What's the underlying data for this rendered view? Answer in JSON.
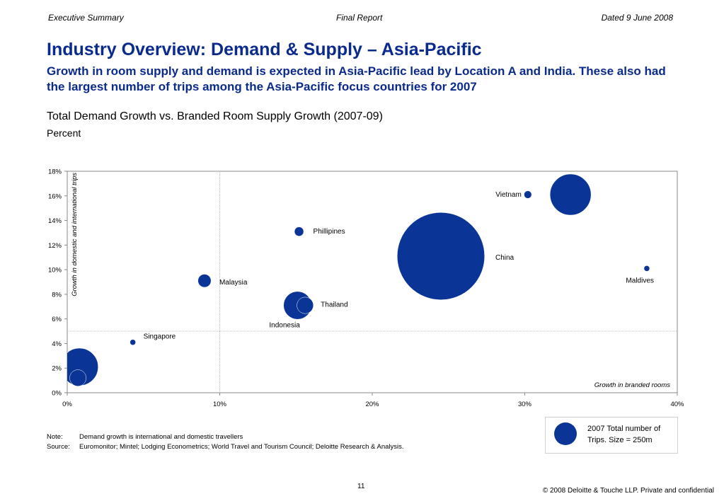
{
  "header": {
    "left": "Executive Summary",
    "center": "Final Report",
    "right": "Dated 9 June 2008"
  },
  "title": "Industry Overview: Demand & Supply – Asia-Pacific",
  "subtitle": "Growth in room supply and demand is expected in Asia-Pacific lead by Location A and India. These also had the largest number of trips among the Asia-Pacific focus countries for 2007",
  "chart_title": "Total Demand Growth vs. Branded Room Supply Growth (2007-09)",
  "chart_unit": "Percent",
  "notes": {
    "note_label": "Note:",
    "note_text": "Demand growth is international and domestic travellers",
    "source_label": "Source:",
    "source_text": "Euromonitor; Mintel; Lodging Econometrics; World Travel and Tourism Council; Deloitte Research & Analysis."
  },
  "legend": {
    "text": "2007 Total number of Trips. Size = 250m"
  },
  "page_number": "11",
  "copyright": "© 2008 Deloitte & Touche LLP. Private and confidential",
  "colors": {
    "bubble": "#0a3596",
    "title": "#0a2a8c"
  },
  "chart_data": {
    "type": "scatter",
    "xlabel": "Growth in branded rooms",
    "ylabel": "Growth in domestic and international trips",
    "xlim": [
      0,
      40
    ],
    "ylim": [
      0,
      18
    ],
    "x_ticks": [
      "0%",
      "10%",
      "20%",
      "30%",
      "40%"
    ],
    "y_ticks": [
      "0%",
      "2%",
      "4%",
      "6%",
      "8%",
      "10%",
      "12%",
      "14%",
      "16%",
      "18%"
    ],
    "reference_lines": {
      "x": 10,
      "y": 5
    },
    "points": [
      {
        "label": "",
        "x": 0.8,
        "y": 2.1,
        "trips_m": 500
      },
      {
        "label": "",
        "x": 0.7,
        "y": 1.2,
        "trips_m": 95
      },
      {
        "label": "Singapore",
        "x": 4.3,
        "y": 4.1,
        "trips_m": 7
      },
      {
        "label": "Malaysia",
        "x": 9.0,
        "y": 9.1,
        "trips_m": 60
      },
      {
        "label": "Indonesia",
        "x": 15.1,
        "y": 7.1,
        "trips_m": 280
      },
      {
        "label": "Thailand",
        "x": 15.6,
        "y": 7.1,
        "trips_m": 95
      },
      {
        "label": "Phillipines",
        "x": 15.2,
        "y": 13.1,
        "trips_m": 30
      },
      {
        "label": "China",
        "x": 24.5,
        "y": 11.1,
        "trips_m": 2700
      },
      {
        "label": "Vietnam",
        "x": 30.2,
        "y": 16.1,
        "trips_m": 20
      },
      {
        "label": "",
        "x": 33.0,
        "y": 16.1,
        "trips_m": 600
      },
      {
        "label": "Maldives",
        "x": 38.0,
        "y": 10.1,
        "trips_m": 4
      }
    ]
  }
}
